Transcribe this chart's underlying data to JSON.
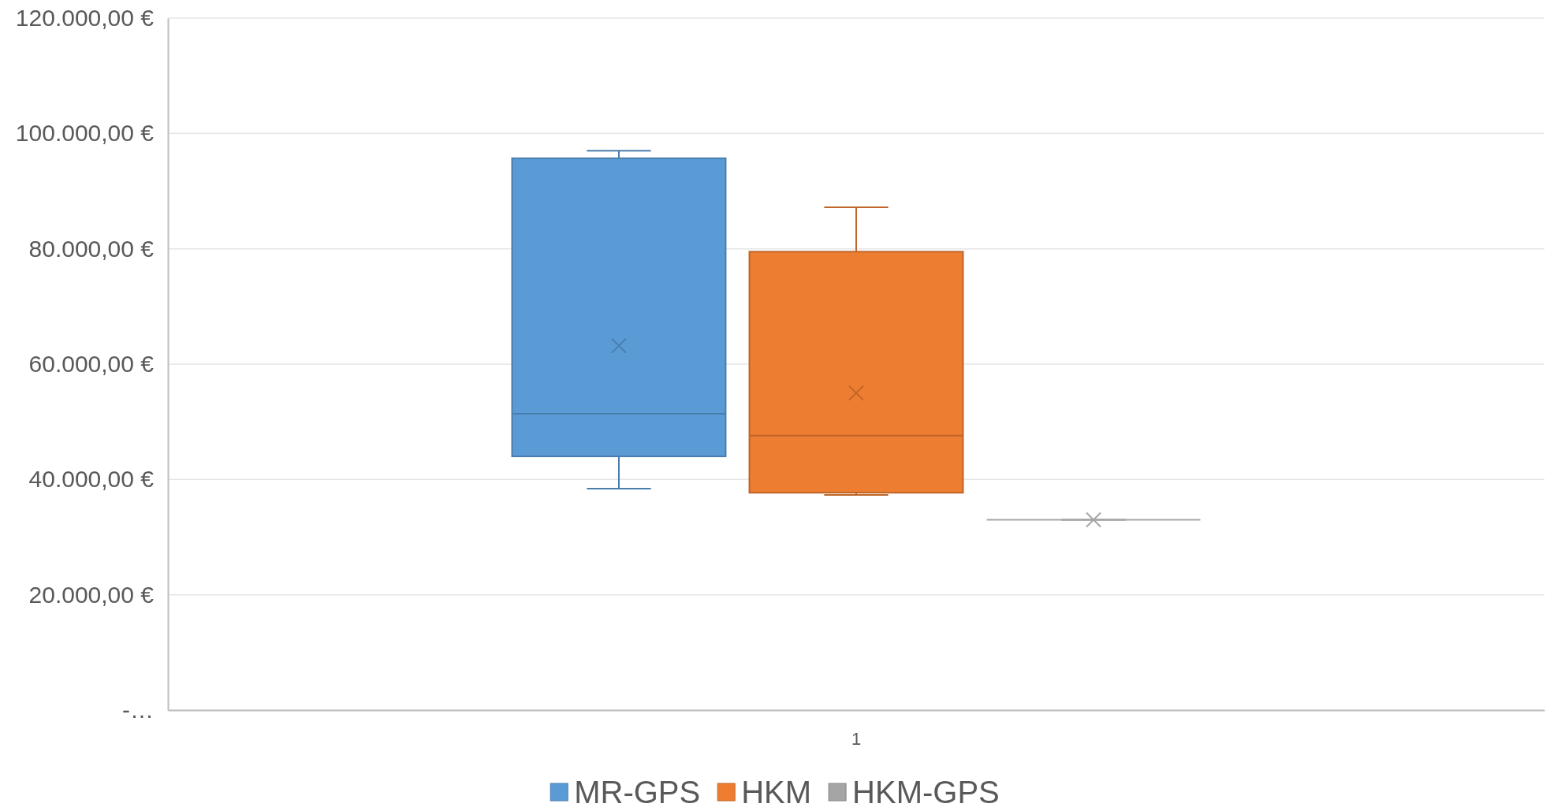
{
  "chart_data": {
    "type": "box",
    "categories": [
      "1"
    ],
    "series": [
      {
        "name": "MR-GPS",
        "color": "#5b9bd5",
        "boxes": [
          {
            "low": 38400,
            "q1": 44000,
            "median": 51400,
            "q3": 95700,
            "high": 97000,
            "mean": 63200
          }
        ]
      },
      {
        "name": "HKM",
        "color": "#ed7d31",
        "boxes": [
          {
            "low": 37300,
            "q1": 37700,
            "median": 47600,
            "q3": 79500,
            "high": 87200,
            "mean": 55000
          }
        ]
      },
      {
        "name": "HKM-GPS",
        "color": "#a5a5a5",
        "boxes": [
          {
            "low": 33000,
            "q1": 33000,
            "median": 33000,
            "q3": 33000,
            "high": 33000,
            "mean": 33000
          }
        ]
      }
    ],
    "ylim": [
      0,
      120000
    ],
    "yticks": [
      {
        "value": 0,
        "label": "-…"
      },
      {
        "value": 20000,
        "label": "20.000,00 €"
      },
      {
        "value": 40000,
        "label": "40.000,00 €"
      },
      {
        "value": 60000,
        "label": "60.000,00 €"
      },
      {
        "value": 80000,
        "label": "80.000,00 €"
      },
      {
        "value": 100000,
        "label": "100.000,00 €"
      },
      {
        "value": 120000,
        "label": "120.000,00 €"
      }
    ],
    "grid": "y",
    "legend": "bottom"
  }
}
